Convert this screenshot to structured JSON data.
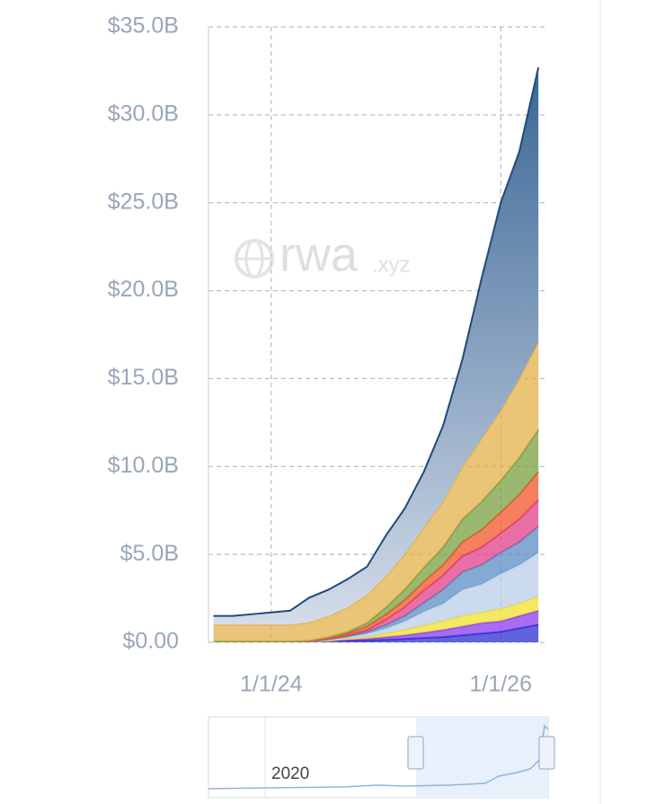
{
  "chart_data": {
    "type": "stacked_area",
    "watermark": {
      "main": "rwa",
      "suffix": ".xyz"
    },
    "navigator_label": "2020",
    "x": [
      "7/1/23",
      "9/1/23",
      "11/1/23",
      "1/1/24",
      "3/1/24",
      "5/1/24",
      "7/1/24",
      "9/1/24",
      "11/1/24",
      "1/1/25",
      "3/1/25",
      "5/1/25",
      "7/1/25",
      "9/1/25",
      "11/1/25",
      "1/1/26",
      "3/1/26",
      "5/1/26"
    ],
    "xlim": [
      "6/15/23",
      "6/1/26"
    ],
    "xticks": [
      "1/1/24",
      "1/1/26"
    ],
    "ylim": [
      0,
      35
    ],
    "yticks": [
      {
        "value": 0,
        "label": "$0.00"
      },
      {
        "value": 5,
        "label": "$5.0B"
      },
      {
        "value": 10,
        "label": "$10.0B"
      },
      {
        "value": 15,
        "label": "$15.0B"
      },
      {
        "value": 20,
        "label": "$20.0B"
      },
      {
        "value": 25,
        "label": "$25.0B"
      },
      {
        "value": 30,
        "label": "$30.0B"
      },
      {
        "value": 35,
        "label": "$35.0B"
      }
    ],
    "grid": true,
    "series": [
      {
        "color": "#2b2fd0",
        "values": [
          0.05,
          0.05,
          0.05,
          0.05,
          0.05,
          0.05,
          0.1,
          0.1,
          0.1,
          0.15,
          0.2,
          0.25,
          0.3,
          0.4,
          0.5,
          0.6,
          0.8,
          1.0
        ]
      },
      {
        "color": "#8c3cf0",
        "values": [
          0,
          0,
          0,
          0,
          0,
          0,
          0,
          0.05,
          0.1,
          0.15,
          0.2,
          0.3,
          0.4,
          0.5,
          0.6,
          0.6,
          0.7,
          0.8
        ]
      },
      {
        "color": "#f2e22c",
        "values": [
          0,
          0,
          0,
          0,
          0,
          0,
          0,
          0.05,
          0.1,
          0.2,
          0.3,
          0.4,
          0.5,
          0.6,
          0.6,
          0.7,
          0.7,
          0.8
        ]
      },
      {
        "color": "#b9cde6",
        "values": [
          0,
          0,
          0,
          0,
          0,
          0,
          0.05,
          0.1,
          0.2,
          0.3,
          0.5,
          0.8,
          1.0,
          1.5,
          1.6,
          2.0,
          2.2,
          2.5
        ]
      },
      {
        "color": "#5b8cc4",
        "values": [
          0,
          0,
          0,
          0,
          0,
          0,
          0.02,
          0.05,
          0.1,
          0.2,
          0.3,
          0.5,
          0.8,
          1.0,
          1.1,
          1.2,
          1.3,
          1.5
        ]
      },
      {
        "color": "#e0408a",
        "values": [
          0,
          0,
          0,
          0,
          0,
          0,
          0.02,
          0.05,
          0.1,
          0.3,
          0.5,
          0.7,
          0.8,
          0.9,
          1.0,
          1.1,
          1.3,
          1.5
        ]
      },
      {
        "color": "#f0552a",
        "values": [
          0,
          0,
          0,
          0,
          0,
          0.02,
          0.05,
          0.1,
          0.2,
          0.3,
          0.4,
          0.5,
          0.6,
          0.8,
          1.0,
          1.2,
          1.4,
          1.6
        ]
      },
      {
        "color": "#7aa040",
        "values": [
          0,
          0,
          0,
          0,
          0,
          0.02,
          0.05,
          0.1,
          0.2,
          0.4,
          0.6,
          0.8,
          1.0,
          1.3,
          1.6,
          1.8,
          2.1,
          2.4
        ]
      },
      {
        "color": "#e3b04a",
        "values": [
          0.95,
          0.95,
          0.95,
          0.95,
          0.95,
          1.05,
          1.2,
          1.4,
          1.6,
          1.8,
          2.0,
          2.3,
          2.6,
          3.0,
          3.6,
          4.0,
          4.5,
          5.0
        ]
      },
      {
        "color": "#1f4a7a",
        "values": [
          0.5,
          0.5,
          0.6,
          0.7,
          0.8,
          1.4,
          1.5,
          1.6,
          1.6,
          2.3,
          2.6,
          3.15,
          4.3,
          6.1,
          9.1,
          11.8,
          12.9,
          15.6
        ]
      }
    ]
  }
}
